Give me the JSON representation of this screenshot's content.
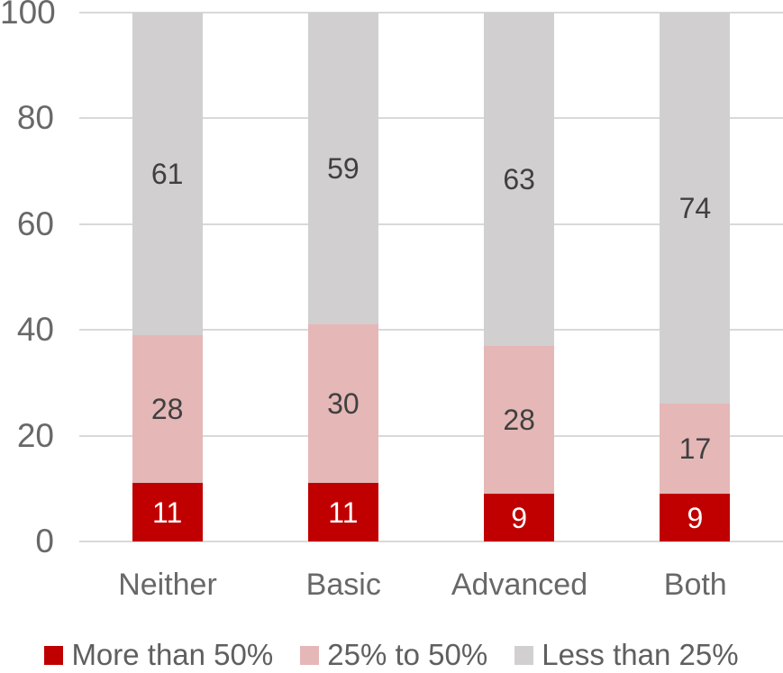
{
  "chart_data": {
    "type": "bar",
    "stacked": true,
    "orientation": "vertical",
    "categories": [
      "Neither",
      "Basic",
      "Advanced",
      "Both"
    ],
    "series": [
      {
        "name": "More than 50%",
        "color": "#c00000",
        "label_color": "#ffffff",
        "values": [
          11,
          11,
          9,
          9
        ]
      },
      {
        "name": "25% to 50%",
        "color": "#e5b7b7",
        "label_color": "#404040",
        "values": [
          28,
          30,
          28,
          17
        ]
      },
      {
        "name": "Less than 25%",
        "color": "#d1cfcf",
        "label_color": "#404040",
        "values": [
          61,
          59,
          63,
          74
        ]
      }
    ],
    "title": "",
    "xlabel": "",
    "ylabel": "",
    "ylim": [
      0,
      100
    ],
    "yticks": [
      0,
      20,
      40,
      60,
      80,
      100
    ],
    "grid": true,
    "gridline_color": "#d9d9d9",
    "axis_text_color": "#686868",
    "legend_text_color": "#5f5f5f",
    "legend_position": "bottom",
    "data_labels_shown": true
  }
}
